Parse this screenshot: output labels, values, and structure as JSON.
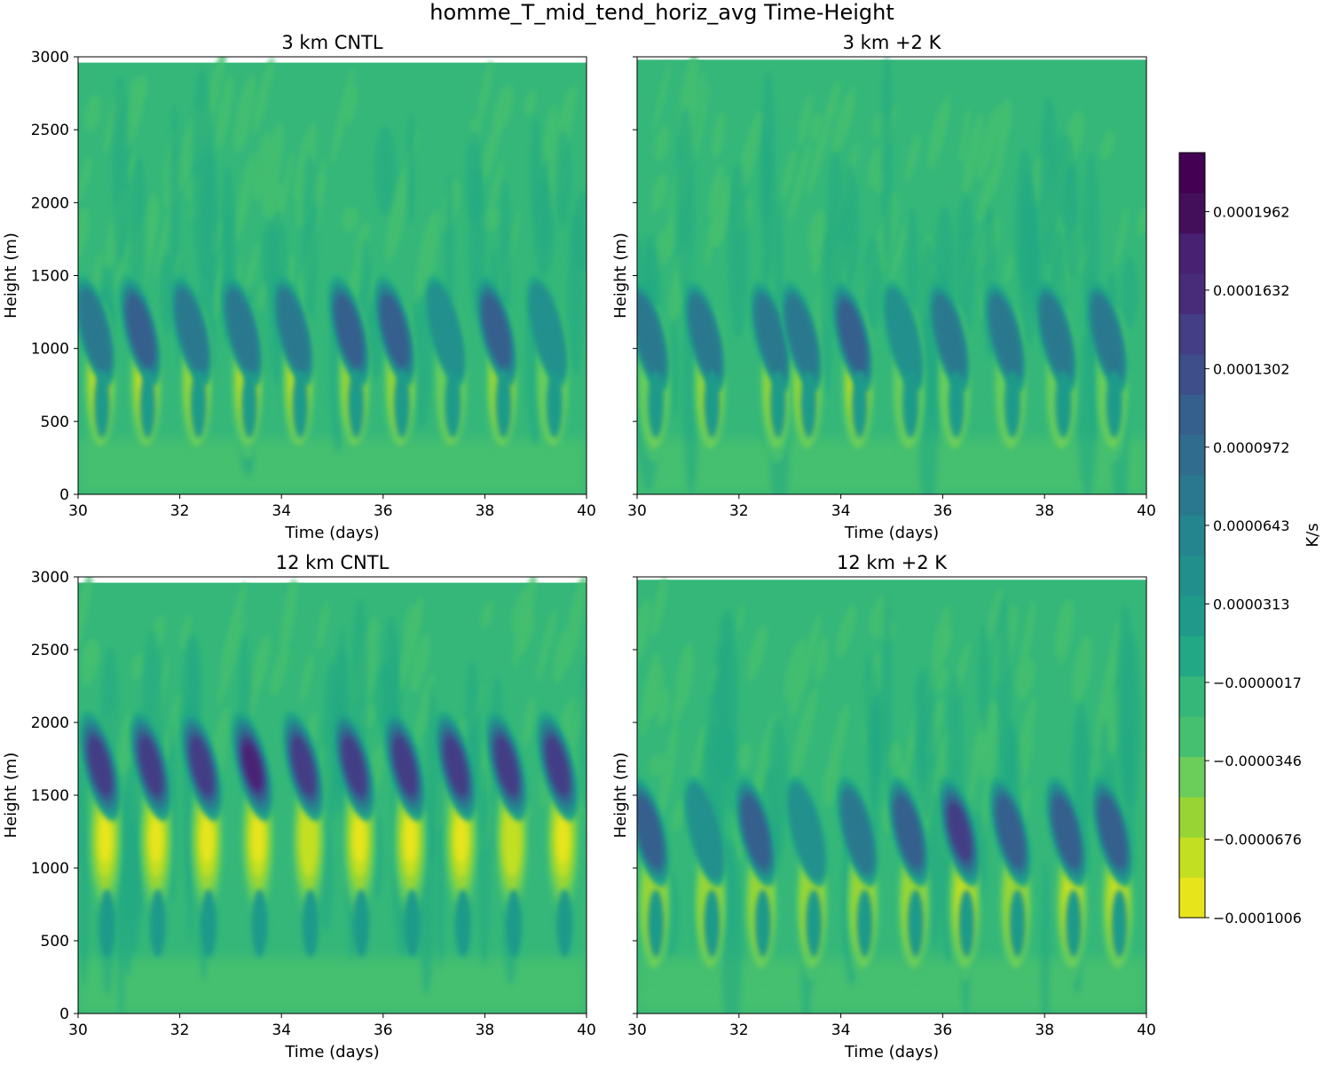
{
  "figure_title": "homme_T_mid_tend_horiz_avg Time-Height",
  "colorbar": {
    "label": "K/s",
    "tick_labels": [
      "0.0001962",
      "0.0001632",
      "0.0001302",
      "0.0000972",
      "0.0000643",
      "0.0000313",
      "−0.0000017",
      "−0.0000346",
      "−0.0000676",
      "−0.0001006"
    ],
    "tick_values": [
      0.0001962,
      0.0001632,
      0.0001302,
      9.72e-05,
      6.43e-05,
      3.13e-05,
      -1.7e-06,
      -3.46e-05,
      -6.76e-05,
      -0.0001006
    ],
    "range": [
      -0.0001006,
      0.000221
    ],
    "colors": [
      "#e8e41b",
      "#c3df22",
      "#98d534",
      "#6bcd5a",
      "#45bf70",
      "#35b779",
      "#22a884",
      "#1f9a8a",
      "#21908d",
      "#25858e",
      "#2a788e",
      "#2f6c8e",
      "#355f8d",
      "#3d4e8a",
      "#433e85",
      "#482b79",
      "#482173",
      "#440f5a",
      "#440154"
    ]
  },
  "chart_data": [
    {
      "type": "heatmap",
      "title": "3 km CNTL",
      "xlabel": "Time (days)",
      "ylabel": "Height (m)",
      "xlim": [
        30,
        40
      ],
      "ylim": [
        0,
        3000
      ],
      "x_ticks": [
        "30",
        "32",
        "34",
        "36",
        "38",
        "40"
      ],
      "y_ticks": [
        "0",
        "500",
        "1000",
        "1500",
        "2000",
        "2500",
        "3000"
      ],
      "data_top": 2960,
      "neg_band_height": 780,
      "pos_band_height": 1120,
      "events": [
        {
          "t": 30.4,
          "neg": 0.75,
          "pos": 0.45
        },
        {
          "t": 31.3,
          "neg": 0.95,
          "pos": 0.55
        },
        {
          "t": 32.3,
          "neg": 0.55,
          "pos": 0.4
        },
        {
          "t": 33.3,
          "neg": 0.75,
          "pos": 0.45
        },
        {
          "t": 34.3,
          "neg": 0.7,
          "pos": 0.45
        },
        {
          "t": 35.4,
          "neg": 0.6,
          "pos": 0.5
        },
        {
          "t": 36.3,
          "neg": 0.55,
          "pos": 0.5
        },
        {
          "t": 37.3,
          "neg": 0.4,
          "pos": 0.35
        },
        {
          "t": 38.3,
          "neg": 0.65,
          "pos": 0.5
        },
        {
          "t": 39.3,
          "neg": 0.35,
          "pos": 0.35
        }
      ]
    },
    {
      "type": "heatmap",
      "title": "3 km +2 K",
      "xlabel": "Time (days)",
      "ylabel": "Height (m)",
      "xlim": [
        30,
        40
      ],
      "ylim": [
        0,
        3000
      ],
      "x_ticks": [
        "30",
        "32",
        "34",
        "36",
        "38",
        "40"
      ],
      "y_ticks": [
        "0",
        "500",
        "1000",
        "1500",
        "2000",
        "2500",
        "3000"
      ],
      "data_top": 2980,
      "neg_band_height": 760,
      "pos_band_height": 1080,
      "events": [
        {
          "t": 30.3,
          "neg": 0.45,
          "pos": 0.4
        },
        {
          "t": 31.4,
          "neg": 0.5,
          "pos": 0.4
        },
        {
          "t": 32.7,
          "neg": 0.6,
          "pos": 0.45
        },
        {
          "t": 33.3,
          "neg": 0.65,
          "pos": 0.45
        },
        {
          "t": 34.3,
          "neg": 0.7,
          "pos": 0.5
        },
        {
          "t": 35.3,
          "neg": 0.45,
          "pos": 0.35
        },
        {
          "t": 36.2,
          "neg": 0.45,
          "pos": 0.4
        },
        {
          "t": 37.3,
          "neg": 0.45,
          "pos": 0.45
        },
        {
          "t": 38.3,
          "neg": 0.35,
          "pos": 0.4
        },
        {
          "t": 39.3,
          "neg": 0.45,
          "pos": 0.45
        }
      ]
    },
    {
      "type": "heatmap",
      "title": "12 km CNTL",
      "xlabel": "Time (days)",
      "ylabel": "Height (m)",
      "xlim": [
        30,
        40
      ],
      "ylim": [
        0,
        3000
      ],
      "x_ticks": [
        "30",
        "32",
        "34",
        "36",
        "38",
        "40"
      ],
      "y_ticks": [
        "0",
        "500",
        "1000",
        "1500",
        "2000",
        "2500",
        "3000"
      ],
      "data_top": 2960,
      "neg_band_height": 1200,
      "pos_band_height": 1700,
      "events": [
        {
          "t": 30.5,
          "neg": 0.95,
          "pos": 0.7
        },
        {
          "t": 31.5,
          "neg": 0.9,
          "pos": 0.65
        },
        {
          "t": 32.5,
          "neg": 0.9,
          "pos": 0.7
        },
        {
          "t": 33.5,
          "neg": 1.0,
          "pos": 0.8
        },
        {
          "t": 34.5,
          "neg": 0.85,
          "pos": 0.75
        },
        {
          "t": 35.5,
          "neg": 0.9,
          "pos": 0.7
        },
        {
          "t": 36.5,
          "neg": 0.9,
          "pos": 0.75
        },
        {
          "t": 37.5,
          "neg": 1.0,
          "pos": 0.75
        },
        {
          "t": 38.5,
          "neg": 0.85,
          "pos": 0.7
        },
        {
          "t": 39.5,
          "neg": 0.9,
          "pos": 0.75
        }
      ]
    },
    {
      "type": "heatmap",
      "title": "12 km +2 K",
      "xlabel": "Time (days)",
      "ylabel": "Height (m)",
      "xlim": [
        30,
        40
      ],
      "ylim": [
        0,
        3000
      ],
      "x_ticks": [
        "30",
        "32",
        "34",
        "36",
        "38",
        "40"
      ],
      "y_ticks": [
        "0",
        "500",
        "1000",
        "1500",
        "2000",
        "2500",
        "3000"
      ],
      "data_top": 2980,
      "neg_band_height": 760,
      "pos_band_height": 1250,
      "events": [
        {
          "t": 30.3,
          "neg": 0.6,
          "pos": 0.5
        },
        {
          "t": 31.4,
          "neg": 0.55,
          "pos": 0.35
        },
        {
          "t": 32.4,
          "neg": 0.55,
          "pos": 0.5
        },
        {
          "t": 33.4,
          "neg": 0.5,
          "pos": 0.35
        },
        {
          "t": 34.4,
          "neg": 0.55,
          "pos": 0.45
        },
        {
          "t": 35.4,
          "neg": 0.55,
          "pos": 0.6
        },
        {
          "t": 36.4,
          "neg": 0.7,
          "pos": 0.65
        },
        {
          "t": 37.4,
          "neg": 0.6,
          "pos": 0.55
        },
        {
          "t": 38.5,
          "neg": 0.75,
          "pos": 0.6
        },
        {
          "t": 39.4,
          "neg": 0.7,
          "pos": 0.55
        }
      ]
    }
  ]
}
